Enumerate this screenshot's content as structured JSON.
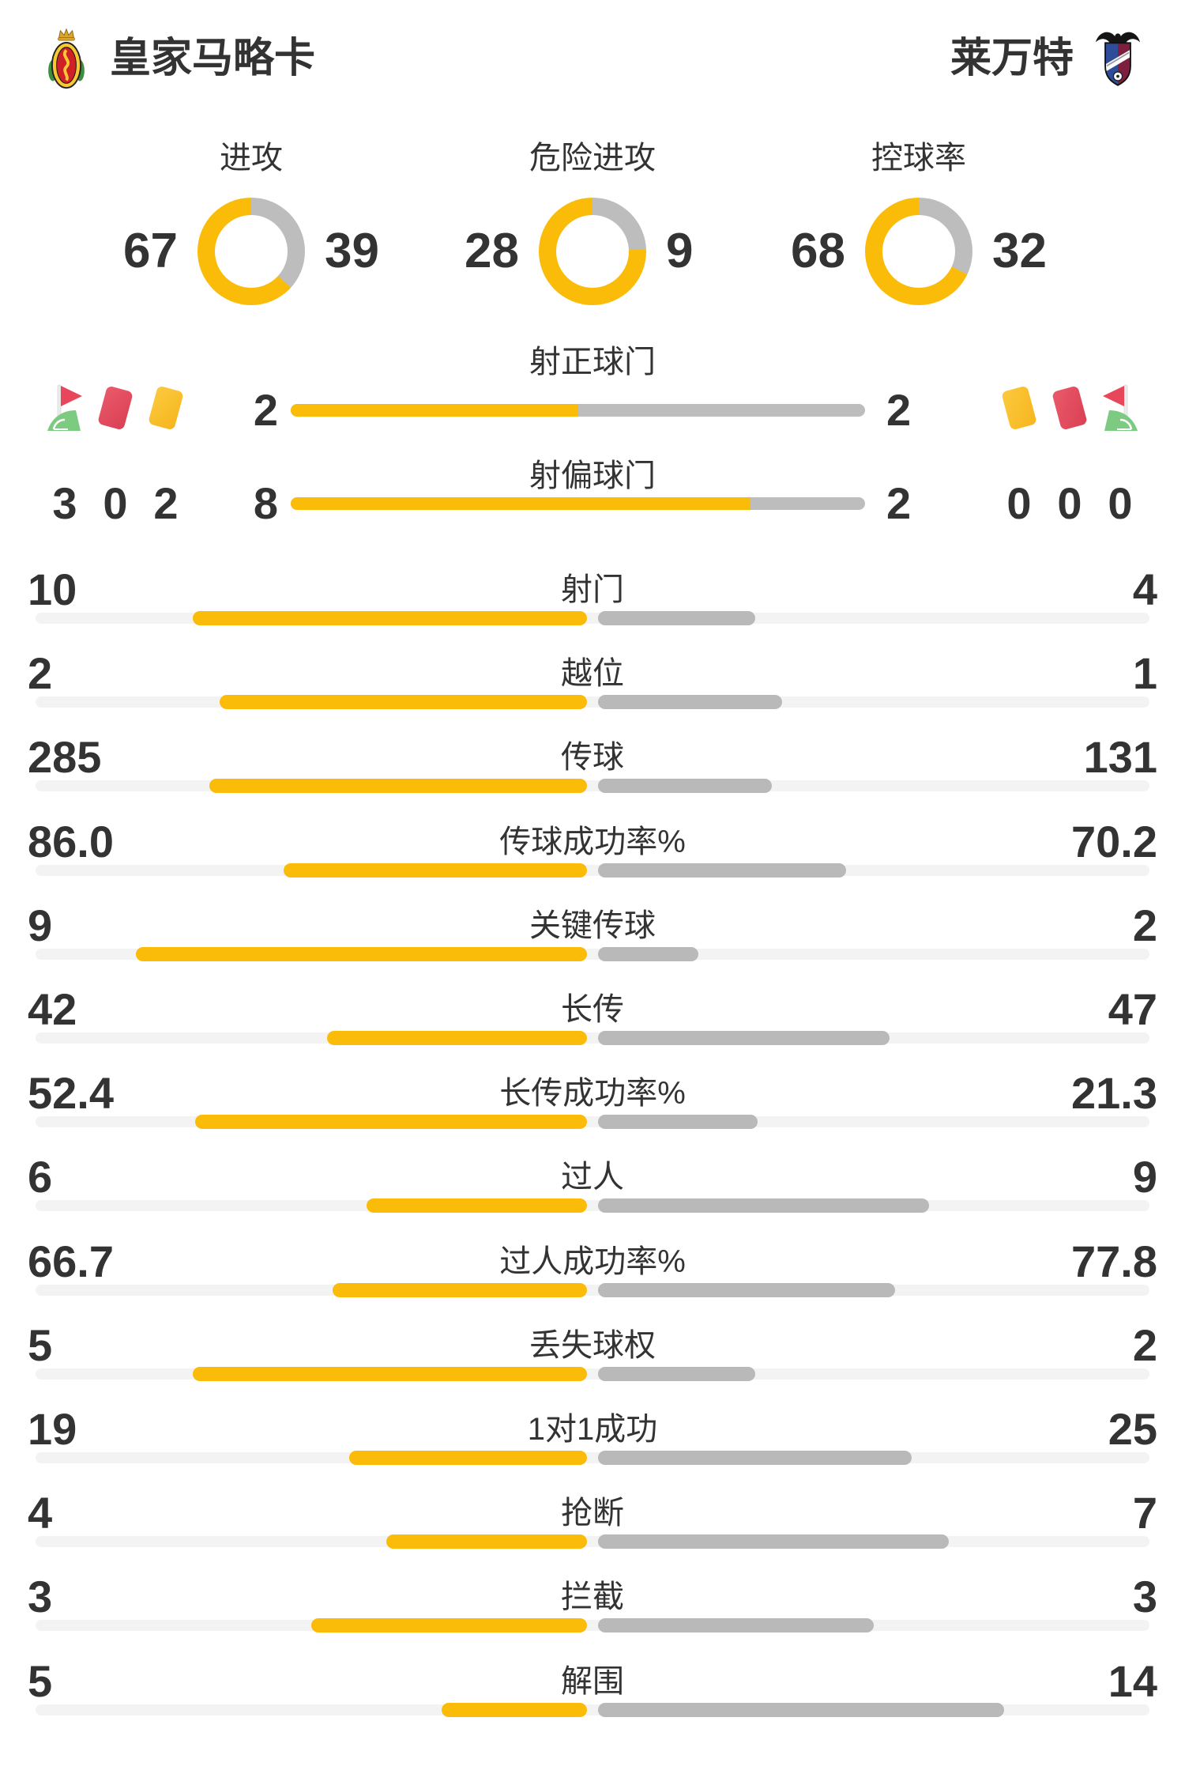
{
  "header": {
    "home_name": "皇家马略卡",
    "away_name": "莱万特"
  },
  "donuts": [
    {
      "label": "进攻",
      "home": "67",
      "away": "39"
    },
    {
      "label": "危险进攻",
      "home": "28",
      "away": "9"
    },
    {
      "label": "控球率",
      "home": "68",
      "away": "32"
    }
  ],
  "discipline": {
    "left_icons": [
      "corner-flag",
      "red-card",
      "yellow-card"
    ],
    "left_values": [
      "3",
      "0",
      "2"
    ],
    "right_icons": [
      "yellow-card",
      "red-card",
      "corner-flag"
    ],
    "right_values": [
      "0",
      "0",
      "0"
    ]
  },
  "shot_rows": [
    {
      "label": "射正球门",
      "home": "2",
      "away": "2"
    },
    {
      "label": "射偏球门",
      "home": "8",
      "away": "2"
    }
  ],
  "stat_rows": [
    {
      "label": "射门",
      "home": "10",
      "away": "4"
    },
    {
      "label": "越位",
      "home": "2",
      "away": "1"
    },
    {
      "label": "传球",
      "home": "285",
      "away": "131"
    },
    {
      "label": "传球成功率%",
      "home": "86.0",
      "away": "70.2"
    },
    {
      "label": "关键传球",
      "home": "9",
      "away": "2"
    },
    {
      "label": "长传",
      "home": "42",
      "away": "47"
    },
    {
      "label": "长传成功率%",
      "home": "52.4",
      "away": "21.3"
    },
    {
      "label": "过人",
      "home": "6",
      "away": "9"
    },
    {
      "label": "过人成功率%",
      "home": "66.7",
      "away": "77.8"
    },
    {
      "label": "丢失球权",
      "home": "5",
      "away": "2"
    },
    {
      "label": "1对1成功",
      "home": "19",
      "away": "25"
    },
    {
      "label": "抢断",
      "home": "4",
      "away": "7"
    },
    {
      "label": "拦截",
      "home": "3",
      "away": "3"
    },
    {
      "label": "解围",
      "home": "5",
      "away": "14"
    }
  ],
  "colors": {
    "home_accent": "#FBBC09",
    "away_accent": "#BDBDBD",
    "bar_away": "#B9B9B9",
    "track": "#F3F3F3",
    "text": "#333333",
    "red_card": "#E25060",
    "yellow_card": "#FBC331",
    "flag_red": "#E8475B",
    "flag_green": "#7CCB81"
  }
}
